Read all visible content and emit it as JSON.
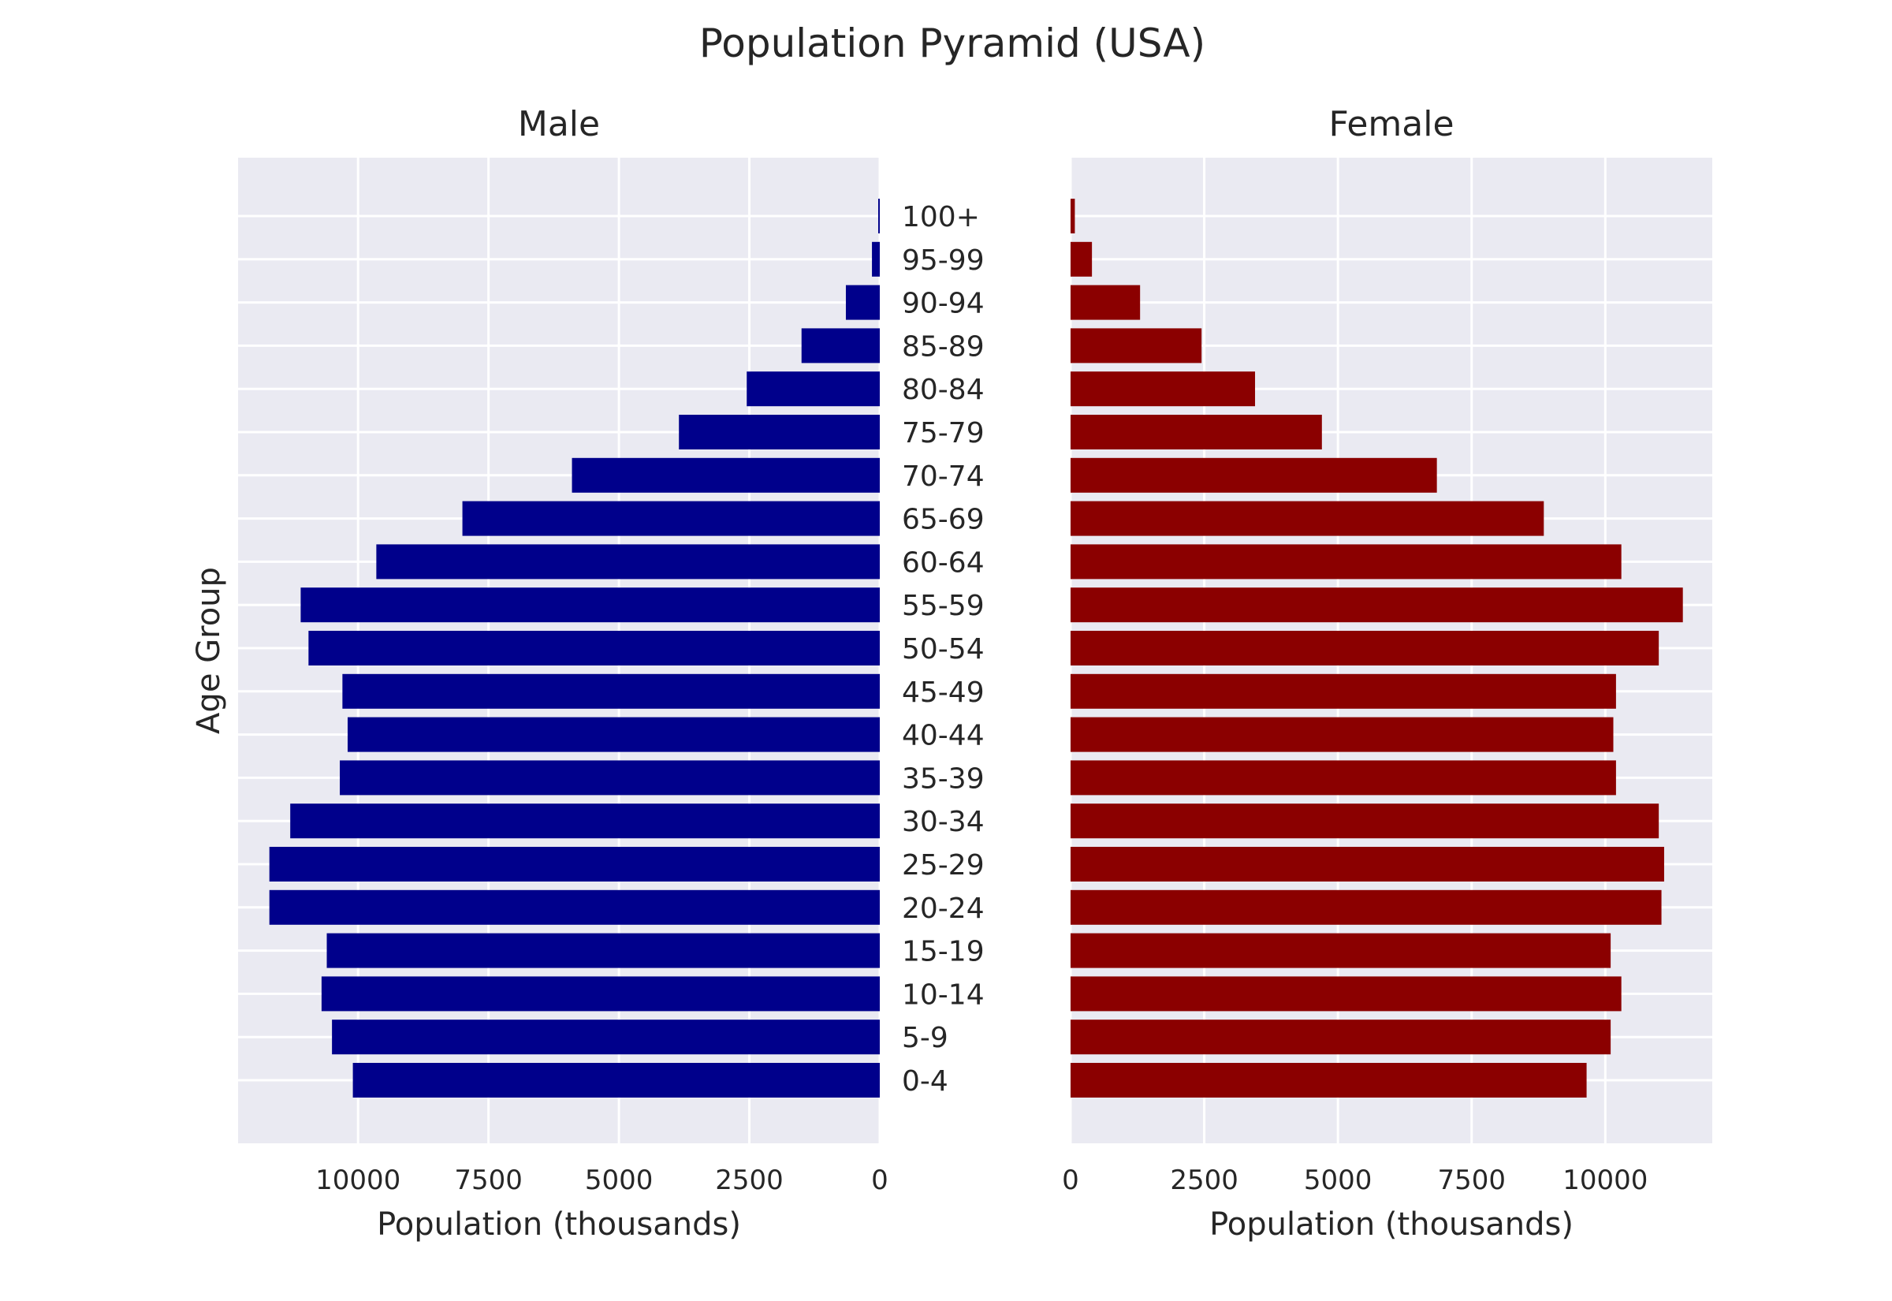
{
  "chart_data": {
    "type": "bar",
    "orientation": "horizontal",
    "layout": "population-pyramid",
    "title": "Population Pyramid (USA)",
    "ylabel": "Age Group",
    "categories": [
      "0-4",
      "5-9",
      "10-14",
      "15-19",
      "20-24",
      "25-29",
      "30-34",
      "35-39",
      "40-44",
      "45-49",
      "50-54",
      "55-59",
      "60-64",
      "65-69",
      "70-74",
      "75-79",
      "80-84",
      "85-89",
      "90-94",
      "95-99",
      "100+"
    ],
    "panels": [
      {
        "name": "Male",
        "title": "Male",
        "xlabel": "Population (thousands)",
        "xlim": [
          12300,
          0
        ],
        "inverted": true,
        "ticks": [
          10000,
          7500,
          5000,
          2500,
          0
        ],
        "tick_labels": [
          "10000",
          "7500",
          "5000",
          "2500",
          "0"
        ],
        "color": "#00008b",
        "values": [
          10100,
          10500,
          10700,
          10600,
          11700,
          11700,
          11300,
          10350,
          10200,
          10300,
          10950,
          11100,
          9650,
          8000,
          5900,
          3850,
          2550,
          1500,
          650,
          150,
          30
        ]
      },
      {
        "name": "Female",
        "title": "Female",
        "xlabel": "Population (thousands)",
        "xlim": [
          0,
          12000
        ],
        "inverted": false,
        "ticks": [
          0,
          2500,
          5000,
          7500,
          10000
        ],
        "tick_labels": [
          "0",
          "2500",
          "5000",
          "7500",
          "10000"
        ],
        "color": "#8b0000",
        "values": [
          9650,
          10100,
          10300,
          10100,
          11050,
          11100,
          11000,
          10200,
          10150,
          10200,
          11000,
          11450,
          10300,
          8850,
          6850,
          4700,
          3450,
          2450,
          1300,
          400,
          80
        ]
      }
    ],
    "grid": true,
    "legend": "none"
  }
}
